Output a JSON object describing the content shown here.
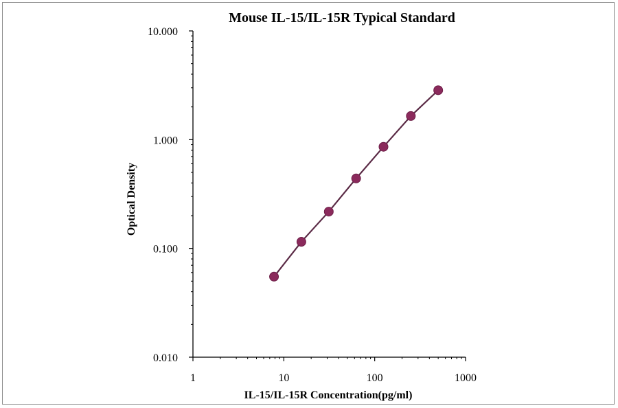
{
  "chart_data": {
    "type": "line",
    "title": "Mouse IL-15/IL-15R Typical Standard",
    "xlabel": "IL-15/IL-15R  Concentration(pg/ml)",
    "ylabel": "Optical Density",
    "x_scale": "log",
    "y_scale": "log",
    "xlim": [
      1,
      1000
    ],
    "ylim": [
      0.01,
      10
    ],
    "x_ticks": [
      {
        "value": 1,
        "label": "1"
      },
      {
        "value": 10,
        "label": "10"
      },
      {
        "value": 100,
        "label": "100"
      },
      {
        "value": 1000,
        "label": "1000"
      }
    ],
    "y_ticks": [
      {
        "value": 0.01,
        "label": "0.010"
      },
      {
        "value": 0.1,
        "label": "0.100"
      },
      {
        "value": 1,
        "label": "1.000"
      },
      {
        "value": 10,
        "label": "10.000"
      }
    ],
    "grid": false,
    "series": [
      {
        "color": "#8b2a5c",
        "markers": true,
        "x": [
          7.8,
          15.6,
          31.25,
          62.5,
          125,
          250,
          500
        ],
        "y": [
          0.055,
          0.115,
          0.218,
          0.44,
          0.86,
          1.65,
          2.85
        ]
      }
    ]
  }
}
